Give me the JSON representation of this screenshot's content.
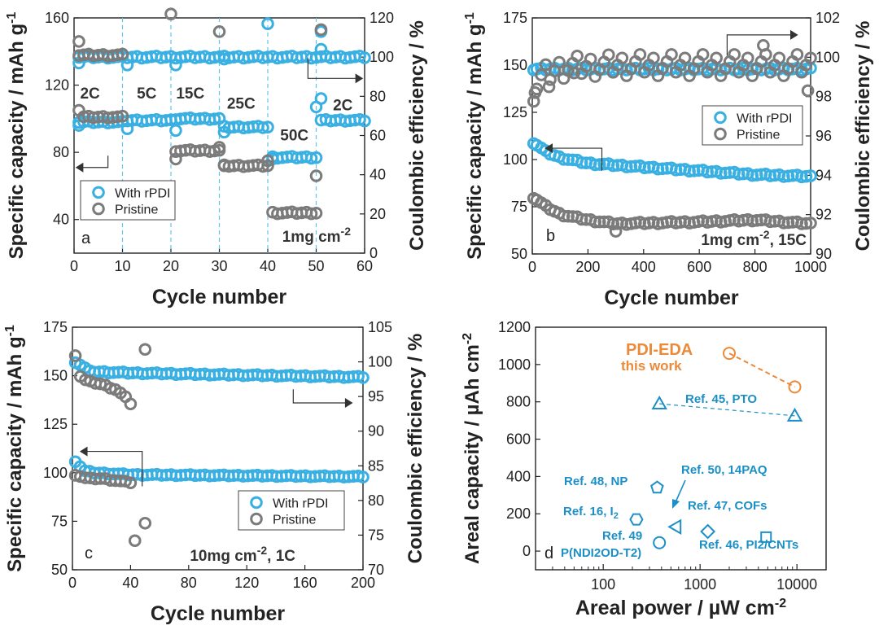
{
  "colors": {
    "rpdi": "#3ab0e2",
    "pristine": "#7b7b7b",
    "pdi": "#ea8a3b",
    "ref": "#1c8fc7",
    "cycle_line": "#64c3ec"
  },
  "chart_data": [
    {
      "panel": "a",
      "type": "scatter",
      "xlabel": "Cycle number",
      "ylabel": "Specific capacity / mAh g-1",
      "y2label": "Coulombic efficiency / %",
      "xlim": [
        0,
        60
      ],
      "ylim": [
        20,
        160
      ],
      "y2lim": [
        0,
        120
      ],
      "xticks": [
        "0",
        "10",
        "20",
        "30",
        "40",
        "50",
        "60"
      ],
      "yticks": [
        "40",
        "80",
        "120",
        "160"
      ],
      "y2ticks": [
        "0",
        "20",
        "40",
        "60",
        "80",
        "100",
        "120"
      ],
      "cycle_dividers": [
        10,
        20,
        30,
        40,
        50
      ],
      "rate_labels": [
        {
          "text": "2C",
          "x": 3.3,
          "y": 112
        },
        {
          "text": "5C",
          "x": 15,
          "y": 112
        },
        {
          "text": "15C",
          "x": 24,
          "y": 112
        },
        {
          "text": "25C",
          "x": 34.5,
          "y": 106
        },
        {
          "text": "50C",
          "x": 45.5,
          "y": 87
        },
        {
          "text": "2C",
          "x": 55.5,
          "y": 105
        }
      ],
      "legend": [
        "With rPDI",
        "Pristine"
      ],
      "condition": "1mg cm",
      "condition_sup": "-2",
      "series": [
        {
          "name": "With rPDI",
          "axis": "left",
          "segments": [
            [
              1,
              10,
              98
            ],
            [
              11,
              20,
              99
            ],
            [
              21,
              30,
              100
            ],
            [
              31,
              40,
              95
            ],
            [
              41,
              50,
              77
            ],
            [
              51,
              60,
              99
            ]
          ],
          "points": [
            [
              1,
              96
            ],
            [
              11,
              94
            ],
            [
              21,
              93
            ],
            [
              31,
              92
            ],
            [
              41,
              76
            ],
            [
              50,
              107
            ],
            [
              51,
              112
            ]
          ]
        },
        {
          "name": "With rPDI",
          "axis": "right",
          "segments": [
            [
              1,
              10,
              100
            ],
            [
              11,
              20,
              100
            ],
            [
              21,
              30,
              100
            ],
            [
              31,
              40,
              100
            ],
            [
              41,
              50,
              100
            ],
            [
              51,
              60,
              100
            ]
          ],
          "points": [
            [
              1,
              97
            ],
            [
              11,
              96
            ],
            [
              21,
              96
            ],
            [
              31,
              99
            ],
            [
              40,
              117
            ],
            [
              51,
              104
            ],
            [
              51,
              113
            ]
          ]
        },
        {
          "name": "Pristine",
          "axis": "left",
          "segments": [
            [
              2,
              10,
              101
            ],
            [
              21,
              30,
              81
            ],
            [
              31,
              40,
              72
            ],
            [
              41,
              50,
              44
            ]
          ],
          "points": [
            [
              1,
              105
            ],
            [
              21,
              76
            ],
            [
              30,
              83
            ],
            [
              31,
              72
            ],
            [
              40,
              75
            ],
            [
              50,
              66
            ]
          ]
        },
        {
          "name": "Pristine",
          "axis": "right",
          "segments": [
            [
              1,
              10,
              101
            ]
          ],
          "points": [
            [
              1,
              108
            ],
            [
              20,
              122
            ],
            [
              30,
              113
            ],
            [
              51,
              114
            ]
          ]
        }
      ]
    },
    {
      "panel": "b",
      "type": "scatter",
      "xlabel": "Cycle number",
      "ylabel": "Specific capacity / mAh g-1",
      "y2label": "Coulombic efficiency / %",
      "xlim": [
        0,
        1000
      ],
      "ylim": [
        50,
        175
      ],
      "y2lim": [
        90,
        102
      ],
      "xticks": [
        "0",
        "200",
        "400",
        "600",
        "800",
        "1000"
      ],
      "yticks": [
        "50",
        "75",
        "100",
        "125",
        "150",
        "175"
      ],
      "y2ticks": [
        "90",
        "92",
        "94",
        "96",
        "98",
        "100",
        "102"
      ],
      "legend": [
        "With rPDI",
        "Pristine"
      ],
      "condition": "1mg cm",
      "condition_sup": "-2",
      "condition_suffix": ", 15C",
      "series": [
        {
          "name": "With rPDI",
          "axis": "left",
          "curve": [
            [
              5,
              109
            ],
            [
              50,
              104
            ],
            [
              100,
              101
            ],
            [
              200,
              98
            ],
            [
              400,
              96
            ],
            [
              600,
              94
            ],
            [
              800,
              92
            ],
            [
              1000,
              91
            ]
          ]
        },
        {
          "name": "With rPDI",
          "axis": "right",
          "constant": 99.4,
          "start": 5,
          "end": 1000
        },
        {
          "name": "Pristine",
          "axis": "left",
          "curve": [
            [
              5,
              80
            ],
            [
              50,
              75
            ],
            [
              100,
              71
            ],
            [
              200,
              68
            ],
            [
              300,
              66
            ],
            [
              600,
              67
            ],
            [
              800,
              68
            ],
            [
              1000,
              66
            ]
          ],
          "outliers": [
            [
              300,
              62
            ]
          ]
        },
        {
          "name": "Pristine",
          "axis": "right",
          "curve": [
            [
              5,
              98.3
            ],
            [
              30,
              98.9
            ],
            [
              60,
              99.2
            ],
            [
              120,
              99.5
            ],
            [
              300,
              99.6
            ],
            [
              1000,
              99.6
            ]
          ],
          "outliers": [
            [
              10,
              98.2
            ],
            [
              60,
              98.5
            ],
            [
              150,
              99.2
            ],
            [
              830,
              100.6
            ],
            [
              990,
              98.3
            ]
          ]
        }
      ]
    },
    {
      "panel": "c",
      "type": "scatter",
      "xlabel": "Cycle number",
      "ylabel": "Specific capacity / mAh g-1",
      "y2label": "Coulombic efficiency / %",
      "xlim": [
        0,
        200
      ],
      "ylim": [
        50,
        175
      ],
      "y2lim": [
        70,
        105
      ],
      "xticks": [
        "0",
        "40",
        "80",
        "120",
        "160",
        "200"
      ],
      "yticks": [
        "50",
        "75",
        "100",
        "125",
        "150",
        "175"
      ],
      "y2ticks": [
        "70",
        "75",
        "80",
        "85",
        "90",
        "95",
        "100",
        "105"
      ],
      "legend": [
        "With rPDI",
        "Pristine"
      ],
      "condition": "10mg cm",
      "condition_sup": "-2",
      "condition_suffix": ", 1C",
      "series": [
        {
          "name": "With rPDI",
          "axis": "left",
          "curve": [
            [
              2,
              106
            ],
            [
              8,
              101
            ],
            [
              15,
              100
            ],
            [
              40,
              99
            ],
            [
              200,
              98
            ]
          ]
        },
        {
          "name": "With rPDI",
          "axis": "right",
          "curve": [
            [
              2,
              100
            ],
            [
              6,
              99.5
            ],
            [
              12,
              98.6
            ],
            [
              40,
              98.4
            ],
            [
              90,
              98.2
            ],
            [
              200,
              97.8
            ]
          ]
        },
        {
          "name": "Pristine",
          "axis": "left",
          "curve": [
            [
              2,
              99
            ],
            [
              10,
              97
            ],
            [
              20,
              97
            ],
            [
              30,
              96
            ],
            [
              40,
              95
            ]
          ],
          "outliers": [
            [
              43,
              65
            ],
            [
              50,
              74
            ]
          ]
        },
        {
          "name": "Pristine",
          "axis": "right",
          "curve": [
            [
              2,
              101
            ],
            [
              5,
              98
            ],
            [
              10,
              97.2
            ],
            [
              20,
              96.8
            ],
            [
              30,
              96
            ],
            [
              36,
              95
            ],
            [
              40,
              94
            ]
          ],
          "outliers": [
            [
              50,
              101.8
            ]
          ]
        }
      ]
    },
    {
      "panel": "d",
      "type": "scatter",
      "xlabel": "Areal power / µW cm",
      "xlabel_sup": "-2",
      "ylabel": "Areal capacity / µAh cm",
      "ylabel_sup": "-2",
      "xscale": "log",
      "xlim": [
        20,
        20000
      ],
      "ylim": [
        -100,
        1200
      ],
      "xticks": [
        "100",
        "1000",
        "10000"
      ],
      "yticks": [
        "0",
        "200",
        "400",
        "600",
        "800",
        "1000",
        "1200"
      ],
      "points": [
        {
          "name": "PDI-EDA",
          "label": "PDI-EDA",
          "sublabel": "this work",
          "marker": "circle",
          "color": "#ea8a3b",
          "data": [
            [
              2000,
              1060
            ],
            [
              9500,
              880
            ]
          ]
        },
        {
          "name": "Ref. 45, PTO",
          "label": "Ref. 45, PTO",
          "marker": "triangle",
          "data": [
            [
              380,
              790
            ],
            [
              9500,
              725
            ]
          ]
        },
        {
          "name": "Ref. 48, NP",
          "label": "Ref. 48, NP",
          "marker": "pentagon",
          "data": [
            [
              360,
              340
            ]
          ]
        },
        {
          "name": "Ref. 50, 14PAQ",
          "label": "Ref. 50, 14PAQ",
          "marker": "triangle-left",
          "data": [
            [
              560,
              130
            ]
          ]
        },
        {
          "name": "Ref. 16, I2",
          "label": "Ref. 16, I",
          "label_sub": "2",
          "marker": "hexagon",
          "data": [
            [
              220,
              170
            ]
          ]
        },
        {
          "name": "Ref. 47, COFs",
          "label": "Ref. 47, COFs",
          "marker": "diamond",
          "data": [
            [
              1200,
              105
            ]
          ]
        },
        {
          "name": "Ref. 49, P(NDI2OD-T2)",
          "label": "Ref. 49",
          "label2": "P(NDI2OD-T2)",
          "marker": "circle",
          "data": [
            [
              380,
              45
            ]
          ]
        },
        {
          "name": "Ref. 46, PI2/CNTs",
          "label": "Ref. 46, PI2/CNTs",
          "marker": "square",
          "data": [
            [
              4800,
              75
            ]
          ]
        }
      ]
    }
  ]
}
